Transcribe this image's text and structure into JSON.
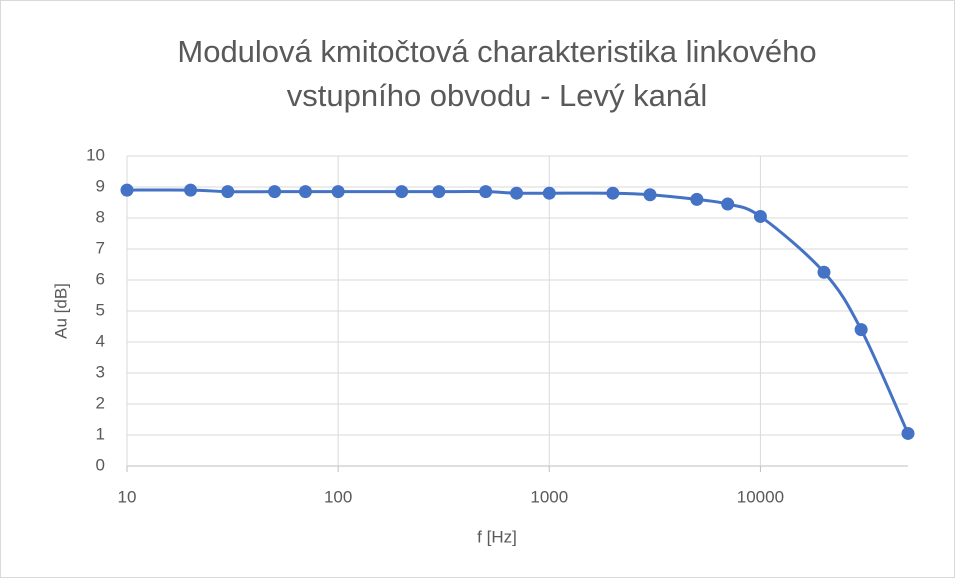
{
  "chart_data": {
    "type": "line",
    "title": "Modulová kmitočtová charakteristika linkového vstupního obvodu - Levý kanál",
    "x_label": "f [Hz]",
    "y_label": "Au [dB]",
    "x": [
      10,
      20,
      30,
      50,
      70,
      100,
      200,
      300,
      500,
      700,
      1000,
      2000,
      3000,
      5000,
      7000,
      10000,
      20000,
      30000,
      50000
    ],
    "series": [
      {
        "name": "Au",
        "color": "#4472c4",
        "values": [
          8.9,
          8.9,
          8.85,
          8.85,
          8.85,
          8.85,
          8.85,
          8.85,
          8.85,
          8.8,
          8.8,
          8.8,
          8.75,
          8.6,
          8.45,
          8.05,
          6.25,
          4.4,
          1.05
        ]
      }
    ],
    "xscale": "log",
    "xlim": [
      10,
      50000
    ],
    "xticks": [
      10,
      100,
      1000,
      10000
    ],
    "ylim": [
      0,
      10
    ],
    "yticks": [
      0,
      1,
      2,
      3,
      4,
      5,
      6,
      7,
      8,
      9,
      10
    ],
    "grid": true,
    "smooth": true
  }
}
